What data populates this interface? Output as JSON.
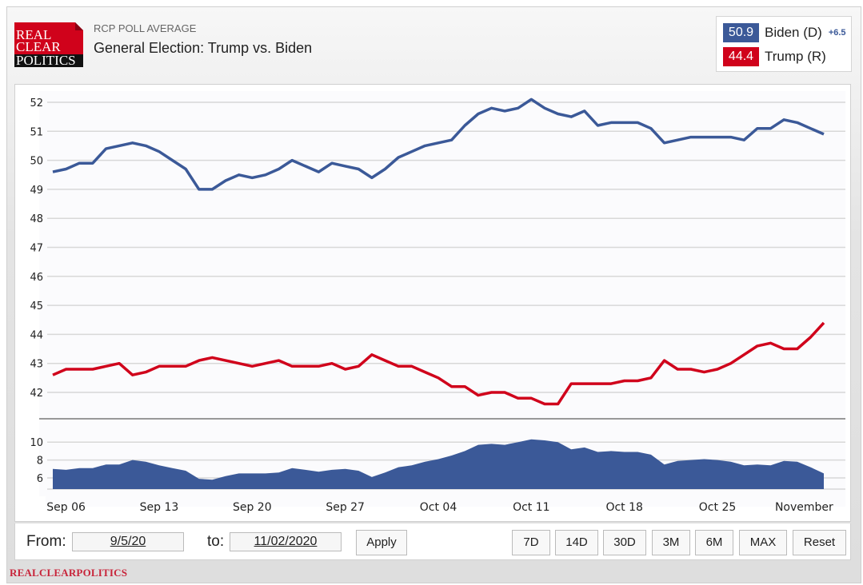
{
  "header": {
    "logo_lines": [
      "REAL",
      "CLEAR",
      "POLITICS"
    ],
    "subtitle": "RCP POLL AVERAGE",
    "title": "General Election: Trump vs. Biden"
  },
  "legend": {
    "items": [
      {
        "value": "50.9",
        "name": "Biden (D)",
        "color": "#3b5998",
        "spread": "+6.5"
      },
      {
        "value": "44.4",
        "name": "Trump (R)",
        "color": "#d0021b",
        "spread": ""
      }
    ]
  },
  "chart_data": {
    "type": "line",
    "title": "General Election: Trump vs. Biden",
    "xlabel": "",
    "ylabel": "",
    "ylim": [
      41,
      52.4
    ],
    "yticks": [
      42,
      43,
      44,
      45,
      46,
      47,
      48,
      49,
      50,
      51,
      52
    ],
    "grid": true,
    "legend": "top-right",
    "x_tick_labels": [
      "Sep 06",
      "Sep 13",
      "Sep 20",
      "Sep 27",
      "Oct 04",
      "Oct 11",
      "Oct 18",
      "Oct 25",
      "November"
    ],
    "x_range": [
      "2020-09-05",
      "2020-11-02"
    ],
    "series": [
      {
        "name": "Biden (D)",
        "color": "#3b5998",
        "values": [
          49.6,
          49.7,
          49.9,
          49.9,
          50.4,
          50.5,
          50.6,
          50.5,
          50.3,
          50.0,
          49.7,
          49.0,
          49.0,
          49.3,
          49.5,
          49.4,
          49.5,
          49.7,
          50.0,
          49.8,
          49.6,
          49.9,
          49.8,
          49.7,
          49.4,
          49.7,
          50.1,
          50.3,
          50.5,
          50.6,
          50.7,
          51.2,
          51.6,
          51.8,
          51.7,
          51.8,
          52.1,
          51.8,
          51.6,
          51.5,
          51.7,
          51.2,
          51.3,
          51.3,
          51.3,
          51.1,
          50.6,
          50.7,
          50.8,
          50.8,
          50.8,
          50.8,
          50.7,
          51.1,
          51.1,
          51.4,
          51.3,
          51.1,
          50.9
        ]
      },
      {
        "name": "Trump (R)",
        "color": "#d0021b",
        "values": [
          42.6,
          42.8,
          42.8,
          42.8,
          42.9,
          43.0,
          42.6,
          42.7,
          42.9,
          42.9,
          42.9,
          43.1,
          43.2,
          43.1,
          43.0,
          42.9,
          43.0,
          43.1,
          42.9,
          42.9,
          42.9,
          43.0,
          42.8,
          42.9,
          43.3,
          43.1,
          42.9,
          42.9,
          42.7,
          42.5,
          42.2,
          42.2,
          41.9,
          42.0,
          42.0,
          41.8,
          41.8,
          41.6,
          41.6,
          42.3,
          42.3,
          42.3,
          42.3,
          42.4,
          42.4,
          42.5,
          43.1,
          42.8,
          42.8,
          42.7,
          42.8,
          43.0,
          43.3,
          43.6,
          43.7,
          43.5,
          43.5,
          43.9,
          44.4
        ]
      }
    ],
    "navigator": {
      "type": "area",
      "name": "Spread",
      "color": "#3b5998",
      "yticks": [
        6,
        8,
        10
      ],
      "ylim": [
        4,
        12
      ]
    }
  },
  "controls": {
    "from_label": "From:",
    "from_value": "9/5/20",
    "to_label": "to:",
    "to_value": "11/02/2020",
    "apply_label": "Apply",
    "range_buttons": [
      "7D",
      "14D",
      "30D",
      "3M",
      "6M",
      "MAX",
      "Reset"
    ]
  },
  "footer": {
    "brand": "REALCLEARPOLITICS"
  }
}
